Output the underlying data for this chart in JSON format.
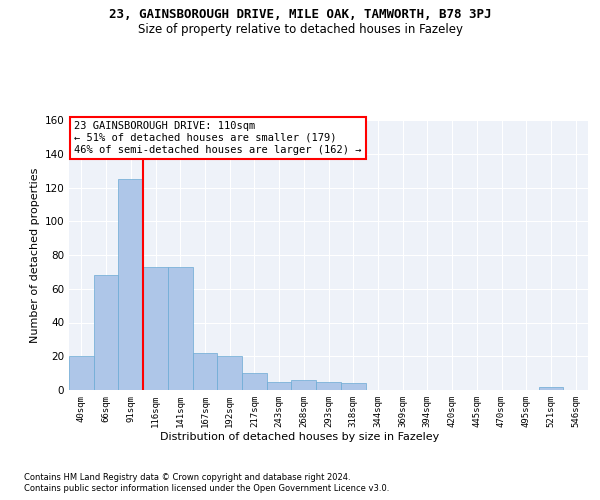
{
  "title_line1": "23, GAINSBOROUGH DRIVE, MILE OAK, TAMWORTH, B78 3PJ",
  "title_line2": "Size of property relative to detached houses in Fazeley",
  "xlabel": "Distribution of detached houses by size in Fazeley",
  "ylabel": "Number of detached properties",
  "categories": [
    "40sqm",
    "66sqm",
    "91sqm",
    "116sqm",
    "141sqm",
    "167sqm",
    "192sqm",
    "217sqm",
    "243sqm",
    "268sqm",
    "293sqm",
    "318sqm",
    "344sqm",
    "369sqm",
    "394sqm",
    "420sqm",
    "445sqm",
    "470sqm",
    "495sqm",
    "521sqm",
    "546sqm"
  ],
  "values": [
    20,
    68,
    125,
    73,
    73,
    22,
    20,
    10,
    5,
    6,
    5,
    4,
    0,
    0,
    0,
    0,
    0,
    0,
    0,
    2,
    0
  ],
  "bar_color": "#aec6e8",
  "bar_edge_color": "#6aaad4",
  "vline_x": 2.5,
  "ylim": [
    0,
    160
  ],
  "yticks": [
    0,
    20,
    40,
    60,
    80,
    100,
    120,
    140,
    160
  ],
  "annotation_line1": "23 GAINSBOROUGH DRIVE: 110sqm",
  "annotation_line2": "← 51% of detached houses are smaller (179)",
  "annotation_line3": "46% of semi-detached houses are larger (162) →",
  "footer_line1": "Contains HM Land Registry data © Crown copyright and database right 2024.",
  "footer_line2": "Contains public sector information licensed under the Open Government Licence v3.0.",
  "bg_color": "#eef2f9",
  "grid_color": "#ffffff",
  "title1_fontsize": 9,
  "title2_fontsize": 8.5,
  "xlabel_fontsize": 8,
  "ylabel_fontsize": 8,
  "footer_fontsize": 6,
  "annot_fontsize": 7.5,
  "tick_fontsize": 6.5,
  "ytick_fontsize": 7.5
}
